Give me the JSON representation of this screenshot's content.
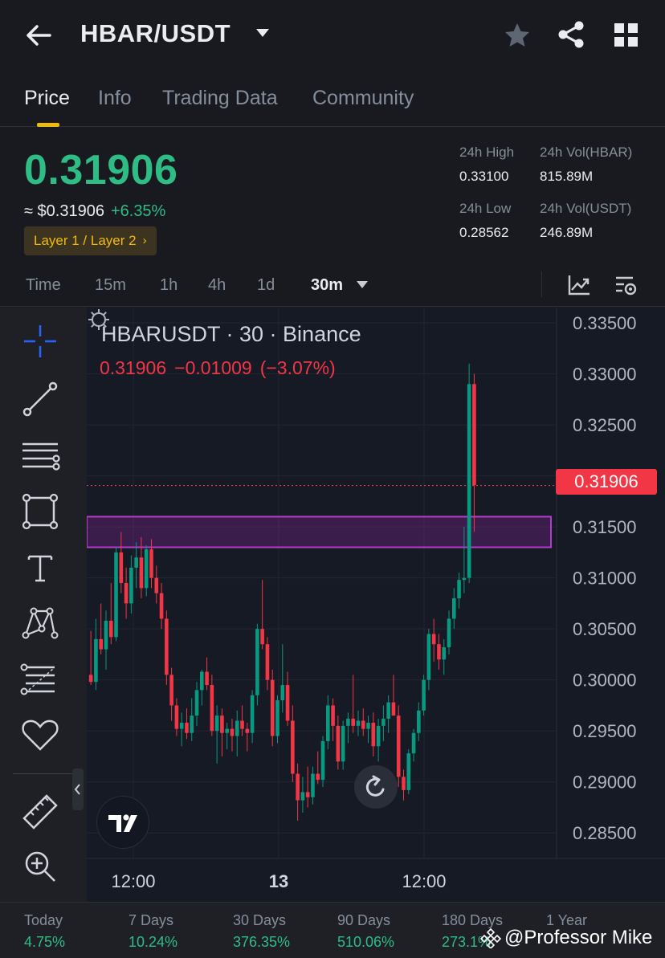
{
  "header": {
    "pair": "HBAR/USDT",
    "icons": [
      "back-arrow-icon",
      "chevron-down-icon",
      "star-icon",
      "share-icon",
      "grid-menu-icon"
    ]
  },
  "tabs": [
    {
      "label": "Price",
      "active": true
    },
    {
      "label": "Info",
      "active": false
    },
    {
      "label": "Trading Data",
      "active": false
    },
    {
      "label": "Community",
      "active": false
    }
  ],
  "ticker": {
    "last_price": "0.31906",
    "usd_value": "≈ $0.31906",
    "change_pct": "+6.35%",
    "tag": "Layer 1 / Layer 2",
    "tag_arrow": "›",
    "high_label": "24h High",
    "high": "0.33100",
    "low_label": "24h Low",
    "low": "0.28562",
    "vol_base_label": "24h Vol(HBAR)",
    "vol_base": "815.89M",
    "vol_quote_label": "24h Vol(USDT)",
    "vol_quote": "246.89M",
    "colors": {
      "up": "#2ebd85",
      "down": "#f23645",
      "accent": "#f0b90b"
    }
  },
  "intervals": {
    "items": [
      "Time",
      "15m",
      "1h",
      "4h",
      "1d",
      "30m"
    ],
    "selected": "30m"
  },
  "toolbar": {
    "tools": [
      "crosshair-icon",
      "trend-line-icon",
      "horizontal-lines-icon",
      "rectangle-icon",
      "text-tool-icon",
      "pattern-icon",
      "fib-retracement-icon",
      "favorite-heart-icon",
      "ruler-icon",
      "zoom-in-icon"
    ]
  },
  "chart": {
    "title": "HBARUSDT · 30 · Binance",
    "ohlc_close": "0.31906",
    "ohlc_change": "−0.01009",
    "ohlc_change_pct": "(−3.07%)",
    "current_price_badge": "0.31906",
    "x_labels": [
      "12:00",
      "13",
      "12:00"
    ]
  },
  "chart_data": {
    "type": "candlestick",
    "title": "HBARUSDT · 30 · Binance",
    "y_ticks": [
      "0.33500",
      "0.33000",
      "0.32500",
      "0.32000",
      "0.31500",
      "0.31000",
      "0.30500",
      "0.30000",
      "0.29500",
      "0.29000",
      "0.28500"
    ],
    "ylim": [
      0.2825,
      0.3365
    ],
    "x_ticks": [
      "12:00",
      "13",
      "12:00"
    ],
    "grid": true,
    "zone": {
      "low": 0.313,
      "high": 0.316,
      "color": "#9c27b0"
    },
    "current_price": 0.31906,
    "candles": [
      {
        "o": 0.3005,
        "h": 0.3048,
        "l": 0.2995,
        "c": 0.2998
      },
      {
        "o": 0.2998,
        "h": 0.306,
        "l": 0.299,
        "c": 0.304
      },
      {
        "o": 0.304,
        "h": 0.3075,
        "l": 0.3025,
        "c": 0.303
      },
      {
        "o": 0.303,
        "h": 0.3068,
        "l": 0.301,
        "c": 0.3058
      },
      {
        "o": 0.3058,
        "h": 0.3095,
        "l": 0.3035,
        "c": 0.3042
      },
      {
        "o": 0.3042,
        "h": 0.313,
        "l": 0.3038,
        "c": 0.3125
      },
      {
        "o": 0.3125,
        "h": 0.3145,
        "l": 0.3085,
        "c": 0.3095
      },
      {
        "o": 0.3095,
        "h": 0.311,
        "l": 0.306,
        "c": 0.3075
      },
      {
        "o": 0.3075,
        "h": 0.3122,
        "l": 0.3065,
        "c": 0.311
      },
      {
        "o": 0.311,
        "h": 0.3135,
        "l": 0.309,
        "c": 0.312
      },
      {
        "o": 0.312,
        "h": 0.314,
        "l": 0.308,
        "c": 0.309
      },
      {
        "o": 0.309,
        "h": 0.3132,
        "l": 0.3082,
        "c": 0.3128
      },
      {
        "o": 0.3128,
        "h": 0.3138,
        "l": 0.309,
        "c": 0.31
      },
      {
        "o": 0.31,
        "h": 0.3112,
        "l": 0.3075,
        "c": 0.3085
      },
      {
        "o": 0.3085,
        "h": 0.3095,
        "l": 0.305,
        "c": 0.306
      },
      {
        "o": 0.306,
        "h": 0.3068,
        "l": 0.2995,
        "c": 0.3005
      },
      {
        "o": 0.3005,
        "h": 0.3012,
        "l": 0.296,
        "c": 0.2975
      },
      {
        "o": 0.2975,
        "h": 0.2982,
        "l": 0.2945,
        "c": 0.2952
      },
      {
        "o": 0.2952,
        "h": 0.2968,
        "l": 0.2935,
        "c": 0.2958
      },
      {
        "o": 0.2958,
        "h": 0.2972,
        "l": 0.2942,
        "c": 0.2948
      },
      {
        "o": 0.2948,
        "h": 0.2982,
        "l": 0.294,
        "c": 0.2965
      },
      {
        "o": 0.2965,
        "h": 0.2998,
        "l": 0.2955,
        "c": 0.299
      },
      {
        "o": 0.299,
        "h": 0.301,
        "l": 0.2975,
        "c": 0.3008
      },
      {
        "o": 0.3008,
        "h": 0.3022,
        "l": 0.299,
        "c": 0.2995
      },
      {
        "o": 0.2995,
        "h": 0.3005,
        "l": 0.2945,
        "c": 0.295
      },
      {
        "o": 0.295,
        "h": 0.2975,
        "l": 0.2918,
        "c": 0.2965
      },
      {
        "o": 0.2965,
        "h": 0.2972,
        "l": 0.2925,
        "c": 0.2948
      },
      {
        "o": 0.2948,
        "h": 0.2958,
        "l": 0.2932,
        "c": 0.2952
      },
      {
        "o": 0.2952,
        "h": 0.2962,
        "l": 0.293,
        "c": 0.2945
      },
      {
        "o": 0.2945,
        "h": 0.297,
        "l": 0.2925,
        "c": 0.296
      },
      {
        "o": 0.296,
        "h": 0.2975,
        "l": 0.2945,
        "c": 0.2952
      },
      {
        "o": 0.2952,
        "h": 0.2958,
        "l": 0.293,
        "c": 0.2948
      },
      {
        "o": 0.2948,
        "h": 0.299,
        "l": 0.2938,
        "c": 0.2985
      },
      {
        "o": 0.2985,
        "h": 0.3055,
        "l": 0.2975,
        "c": 0.305
      },
      {
        "o": 0.305,
        "h": 0.3098,
        "l": 0.303,
        "c": 0.3035
      },
      {
        "o": 0.3035,
        "h": 0.3042,
        "l": 0.299,
        "c": 0.3
      },
      {
        "o": 0.3,
        "h": 0.301,
        "l": 0.2935,
        "c": 0.2945
      },
      {
        "o": 0.2945,
        "h": 0.2985,
        "l": 0.2938,
        "c": 0.298
      },
      {
        "o": 0.298,
        "h": 0.3035,
        "l": 0.2968,
        "c": 0.2995
      },
      {
        "o": 0.2995,
        "h": 0.3008,
        "l": 0.2955,
        "c": 0.296
      },
      {
        "o": 0.296,
        "h": 0.2975,
        "l": 0.29,
        "c": 0.2908
      },
      {
        "o": 0.2908,
        "h": 0.2918,
        "l": 0.2862,
        "c": 0.2882
      },
      {
        "o": 0.2882,
        "h": 0.2905,
        "l": 0.287,
        "c": 0.289
      },
      {
        "o": 0.289,
        "h": 0.2915,
        "l": 0.2875,
        "c": 0.2885
      },
      {
        "o": 0.2885,
        "h": 0.2915,
        "l": 0.2878,
        "c": 0.2908
      },
      {
        "o": 0.2908,
        "h": 0.293,
        "l": 0.2898,
        "c": 0.2902
      },
      {
        "o": 0.2902,
        "h": 0.2945,
        "l": 0.2895,
        "c": 0.294
      },
      {
        "o": 0.294,
        "h": 0.2985,
        "l": 0.2932,
        "c": 0.2975
      },
      {
        "o": 0.2975,
        "h": 0.2982,
        "l": 0.294,
        "c": 0.2955
      },
      {
        "o": 0.2955,
        "h": 0.2965,
        "l": 0.2912,
        "c": 0.292
      },
      {
        "o": 0.292,
        "h": 0.296,
        "l": 0.2912,
        "c": 0.2955
      },
      {
        "o": 0.2955,
        "h": 0.2968,
        "l": 0.2938,
        "c": 0.2962
      },
      {
        "o": 0.2962,
        "h": 0.3005,
        "l": 0.2948,
        "c": 0.2955
      },
      {
        "o": 0.2955,
        "h": 0.297,
        "l": 0.2945,
        "c": 0.296
      },
      {
        "o": 0.296,
        "h": 0.2972,
        "l": 0.2945,
        "c": 0.2952
      },
      {
        "o": 0.2952,
        "h": 0.2965,
        "l": 0.2938,
        "c": 0.2958
      },
      {
        "o": 0.2958,
        "h": 0.2968,
        "l": 0.2925,
        "c": 0.2935
      },
      {
        "o": 0.2935,
        "h": 0.2962,
        "l": 0.292,
        "c": 0.2955
      },
      {
        "o": 0.2955,
        "h": 0.2975,
        "l": 0.294,
        "c": 0.2962
      },
      {
        "o": 0.2962,
        "h": 0.2985,
        "l": 0.2948,
        "c": 0.2978
      },
      {
        "o": 0.2978,
        "h": 0.3005,
        "l": 0.2968,
        "c": 0.2965
      },
      {
        "o": 0.2965,
        "h": 0.2975,
        "l": 0.2895,
        "c": 0.2905
      },
      {
        "o": 0.2905,
        "h": 0.2912,
        "l": 0.2882,
        "c": 0.2892
      },
      {
        "o": 0.2892,
        "h": 0.2932,
        "l": 0.2888,
        "c": 0.2928
      },
      {
        "o": 0.2928,
        "h": 0.2952,
        "l": 0.292,
        "c": 0.2948
      },
      {
        "o": 0.2948,
        "h": 0.2978,
        "l": 0.294,
        "c": 0.297
      },
      {
        "o": 0.297,
        "h": 0.3005,
        "l": 0.2965,
        "c": 0.3
      },
      {
        "o": 0.3,
        "h": 0.305,
        "l": 0.299,
        "c": 0.3045
      },
      {
        "o": 0.3045,
        "h": 0.306,
        "l": 0.3018,
        "c": 0.3035
      },
      {
        "o": 0.3035,
        "h": 0.3045,
        "l": 0.301,
        "c": 0.302
      },
      {
        "o": 0.302,
        "h": 0.304,
        "l": 0.3005,
        "c": 0.3032
      },
      {
        "o": 0.3032,
        "h": 0.3068,
        "l": 0.3025,
        "c": 0.306
      },
      {
        "o": 0.306,
        "h": 0.309,
        "l": 0.305,
        "c": 0.308
      },
      {
        "o": 0.308,
        "h": 0.3105,
        "l": 0.307,
        "c": 0.3098
      },
      {
        "o": 0.3098,
        "h": 0.315,
        "l": 0.3085,
        "c": 0.31
      },
      {
        "o": 0.31,
        "h": 0.331,
        "l": 0.3095,
        "c": 0.329
      },
      {
        "o": 0.329,
        "h": 0.33,
        "l": 0.3145,
        "c": 0.3191
      }
    ]
  },
  "performance": [
    {
      "label": "Today",
      "value": "4.75%"
    },
    {
      "label": "7 Days",
      "value": "10.24%"
    },
    {
      "label": "30 Days",
      "value": "376.35%"
    },
    {
      "label": "90 Days",
      "value": "510.06%"
    },
    {
      "label": "180 Days",
      "value": "273.1%"
    },
    {
      "label": "1 Year",
      "value": ""
    }
  ],
  "watermark": "@Professor Mike"
}
